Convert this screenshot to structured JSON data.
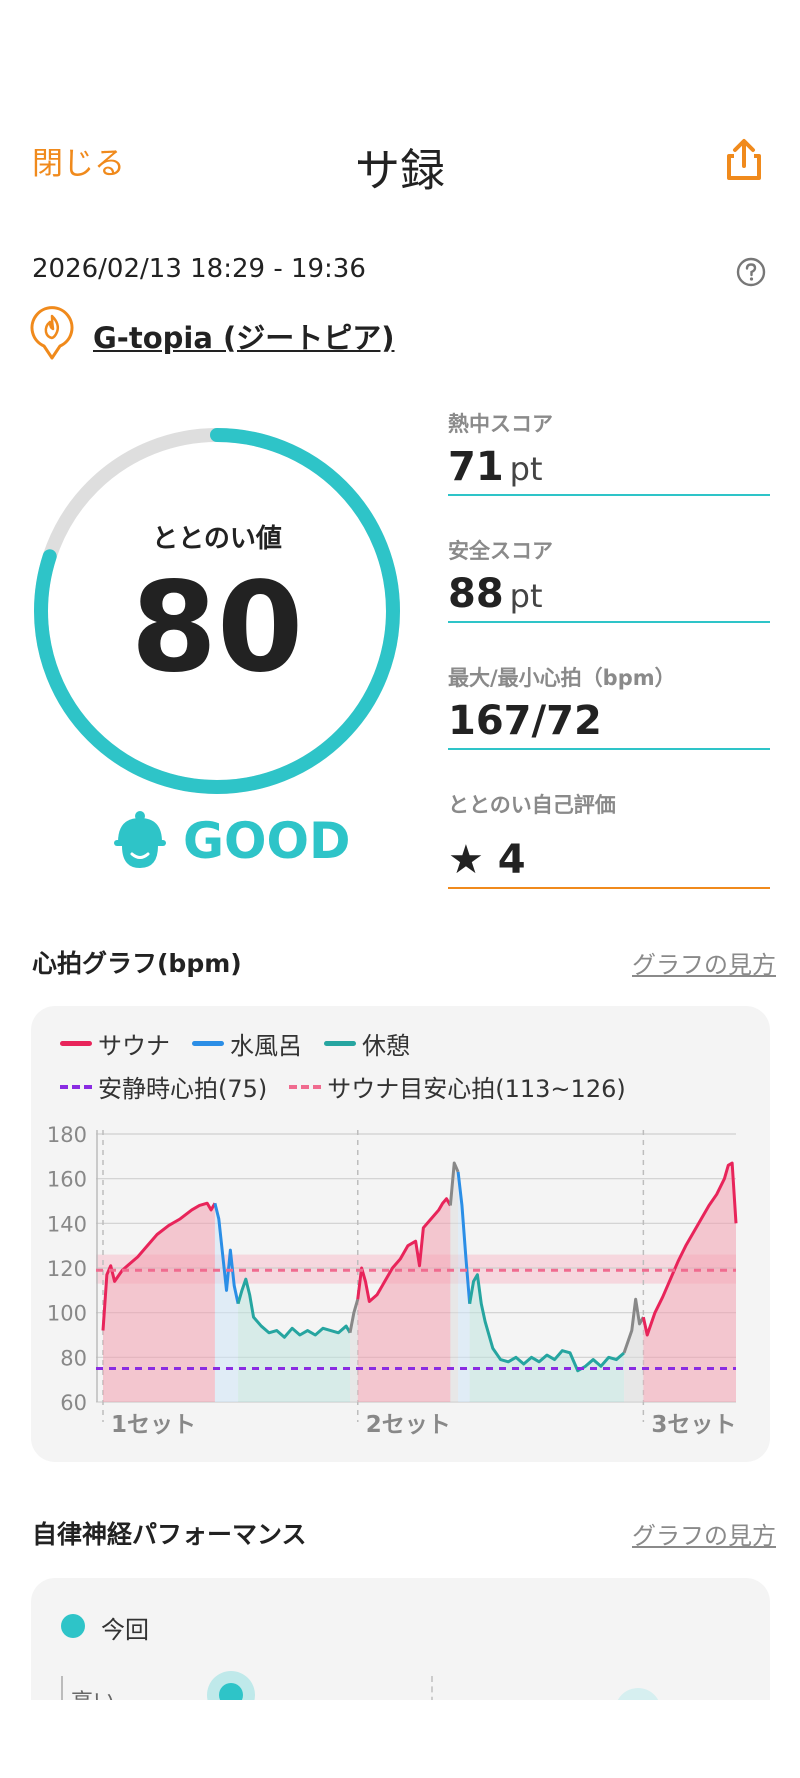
{
  "header": {
    "close_label": "閉じる",
    "title": "サ録"
  },
  "session": {
    "datetime": "2026/02/13 18:29 - 19:36",
    "place": "G-topia (ジートピア)"
  },
  "totonoi": {
    "label": "ととのい値",
    "value": "80",
    "status": "GOOD",
    "fraction": 0.8
  },
  "stats": {
    "heat": {
      "label": "熱中スコア",
      "value": "71",
      "unit": "pt"
    },
    "safety": {
      "label": "安全スコア",
      "value": "88",
      "unit": "pt"
    },
    "heart": {
      "label": "最大/最小心拍（bpm）",
      "value": "167/72"
    },
    "self_eval": {
      "label": "ととのい自己評価",
      "value": "★ 4"
    }
  },
  "heart_graph": {
    "title": "心拍グラフ(bpm)",
    "link": "グラフの見方",
    "legend": {
      "sauna": "サウナ",
      "water": "水風呂",
      "rest": "休憩",
      "resting_hr": "安静時心拍(75)",
      "sauna_target": "サウナ目安心拍(113~126)"
    }
  },
  "colors": {
    "accent": "#2ec4c8",
    "orange": "#f08a1c",
    "sauna": "#e8245a",
    "water": "#2b8ee6",
    "rest": "#26a5a0",
    "resting": "#8a2be2",
    "target": "#f06b8f"
  },
  "chart_data": {
    "type": "line",
    "ylim": [
      60,
      180
    ],
    "yticks": [
      "180",
      "160",
      "140",
      "120",
      "100",
      "80",
      "60"
    ],
    "resting_hr": 75,
    "target_range": [
      113,
      126
    ],
    "target_line": 119,
    "set_labels": [
      "1セット",
      "2セット",
      "3セット"
    ],
    "segments": [
      {
        "phase": "sauna",
        "points": [
          [
            0,
            92
          ],
          [
            1,
            117
          ],
          [
            2,
            121
          ],
          [
            3,
            114
          ],
          [
            5,
            119
          ],
          [
            7,
            122
          ],
          [
            9,
            125
          ],
          [
            11,
            129
          ],
          [
            14,
            135
          ],
          [
            17,
            139
          ],
          [
            20,
            142
          ],
          [
            23,
            146
          ],
          [
            25,
            148
          ],
          [
            27,
            149
          ],
          [
            28,
            146
          ],
          [
            29,
            149
          ]
        ]
      },
      {
        "phase": "water",
        "points": [
          [
            29,
            149
          ],
          [
            30,
            142
          ],
          [
            31,
            126
          ],
          [
            32,
            110
          ],
          [
            33,
            128
          ],
          [
            34,
            112
          ],
          [
            35,
            104
          ]
        ]
      },
      {
        "phase": "rest",
        "points": [
          [
            35,
            104
          ],
          [
            36,
            110
          ],
          [
            37,
            115
          ],
          [
            38,
            108
          ],
          [
            39,
            98
          ],
          [
            41,
            94
          ],
          [
            43,
            91
          ],
          [
            45,
            92
          ],
          [
            47,
            89
          ],
          [
            49,
            93
          ],
          [
            51,
            90
          ],
          [
            53,
            92
          ],
          [
            55,
            90
          ],
          [
            57,
            93
          ],
          [
            59,
            92
          ],
          [
            61,
            91
          ],
          [
            63,
            94
          ],
          [
            64,
            91
          ]
        ]
      },
      {
        "phase": "other",
        "points": [
          [
            64,
            91
          ],
          [
            65,
            100
          ],
          [
            66,
            106
          ]
        ]
      },
      {
        "phase": "sauna",
        "points": [
          [
            66,
            106
          ],
          [
            67,
            120
          ],
          [
            68,
            114
          ],
          [
            69,
            105
          ],
          [
            71,
            108
          ],
          [
            73,
            114
          ],
          [
            75,
            120
          ],
          [
            77,
            124
          ],
          [
            79,
            130
          ],
          [
            81,
            132
          ],
          [
            82,
            121
          ],
          [
            83,
            138
          ],
          [
            85,
            142
          ],
          [
            87,
            146
          ],
          [
            88,
            149
          ],
          [
            89,
            151
          ],
          [
            90,
            148
          ]
        ]
      },
      {
        "phase": "other",
        "points": [
          [
            90,
            148
          ],
          [
            91,
            167
          ],
          [
            92,
            163
          ]
        ]
      },
      {
        "phase": "water",
        "points": [
          [
            92,
            163
          ],
          [
            93,
            148
          ],
          [
            94,
            125
          ],
          [
            95,
            104
          ]
        ]
      },
      {
        "phase": "rest",
        "points": [
          [
            95,
            104
          ],
          [
            96,
            114
          ],
          [
            97,
            117
          ],
          [
            98,
            104
          ],
          [
            99,
            96
          ],
          [
            101,
            84
          ],
          [
            103,
            79
          ],
          [
            105,
            78
          ],
          [
            107,
            80
          ],
          [
            109,
            77
          ],
          [
            111,
            80
          ],
          [
            113,
            78
          ],
          [
            115,
            81
          ],
          [
            117,
            79
          ],
          [
            119,
            83
          ],
          [
            121,
            82
          ],
          [
            123,
            74
          ],
          [
            125,
            76
          ],
          [
            127,
            79
          ],
          [
            129,
            76
          ],
          [
            131,
            80
          ],
          [
            133,
            79
          ],
          [
            135,
            82
          ]
        ]
      },
      {
        "phase": "other",
        "points": [
          [
            135,
            82
          ],
          [
            137,
            92
          ],
          [
            138,
            106
          ],
          [
            139,
            95
          ],
          [
            140,
            98
          ]
        ]
      },
      {
        "phase": "sauna",
        "points": [
          [
            140,
            98
          ],
          [
            141,
            90
          ],
          [
            143,
            100
          ],
          [
            145,
            107
          ],
          [
            147,
            115
          ],
          [
            149,
            123
          ],
          [
            151,
            130
          ],
          [
            153,
            136
          ],
          [
            155,
            142
          ],
          [
            157,
            148
          ],
          [
            159,
            153
          ],
          [
            161,
            160
          ],
          [
            162,
            166
          ],
          [
            163,
            167
          ],
          [
            164,
            140
          ]
        ]
      }
    ],
    "x_range": [
      0,
      164
    ],
    "set_starts": [
      0,
      66,
      140
    ]
  },
  "ans": {
    "title": "自律神経パフォーマンス",
    "link": "グラフの見方",
    "legend_current": "今回",
    "y_label_high": "高い"
  }
}
